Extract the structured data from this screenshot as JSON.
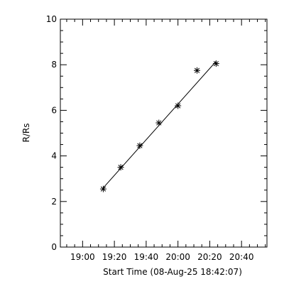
{
  "chart_data": {
    "type": "scatter",
    "xlabel": "Start Time (08-Aug-25 18:42:07)",
    "ylabel": "R/Rs",
    "x_ticks": [
      "19:00",
      "19:20",
      "19:40",
      "20:00",
      "20:20",
      "20:40"
    ],
    "xlim": [
      "18:46",
      "20:56"
    ],
    "ylim": [
      0,
      10
    ],
    "y_ticks": [
      0,
      2,
      4,
      6,
      8,
      10
    ],
    "grid": false,
    "series": [
      {
        "marker": "asterisk",
        "x": [
          "19:13",
          "19:24",
          "19:36",
          "19:48",
          "20:00",
          "20:12",
          "20:24"
        ],
        "y": [
          2.55,
          3.5,
          4.45,
          5.45,
          6.2,
          7.75,
          8.05
        ]
      }
    ],
    "fit_line": {
      "x": [
        "19:13",
        "20:24"
      ],
      "y": [
        2.6,
        8.15
      ]
    }
  },
  "colors": {
    "axis": "#000000",
    "marks": "#000000",
    "background": "#ffffff"
  }
}
